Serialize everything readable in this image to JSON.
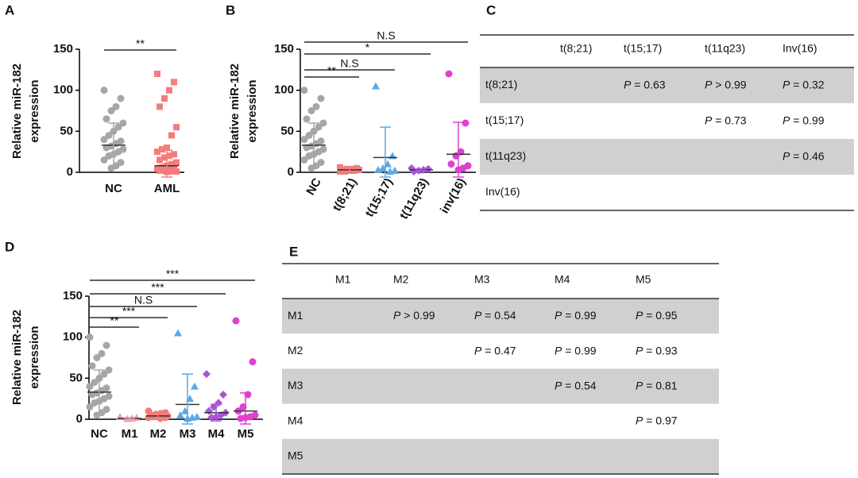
{
  "chart_data": [
    {
      "type": "strip",
      "panel": "A",
      "ylabel": [
        "Relative miR-182",
        "expression"
      ],
      "ylim": [
        0,
        150
      ],
      "yticks": [
        0,
        50,
        100,
        150
      ],
      "series": [
        {
          "name": "NC",
          "color": "#a6a6a6",
          "marker": "circle",
          "values": [
            100,
            90,
            80,
            75,
            65,
            60,
            55,
            50,
            45,
            40,
            38,
            35,
            32,
            30,
            28,
            25,
            22,
            20,
            15,
            12,
            8,
            5
          ],
          "mean": 33,
          "error": 27
        },
        {
          "name": "AML",
          "color": "#f47c7c",
          "marker": "square",
          "values": [
            120,
            110,
            100,
            90,
            80,
            55,
            45,
            30,
            28,
            25,
            22,
            20,
            18,
            15,
            12,
            10,
            8,
            6,
            5,
            4,
            3,
            2,
            2,
            1,
            1,
            0.5
          ],
          "mean": 8,
          "error": 19
        }
      ],
      "comparisons": [
        {
          "label": "**",
          "groups": [
            "NC",
            "AML"
          ]
        }
      ]
    },
    {
      "type": "strip",
      "panel": "B",
      "ylabel": [
        "Relative miR-182",
        "expression"
      ],
      "ylim": [
        0,
        150
      ],
      "yticks": [
        0,
        50,
        100,
        150
      ],
      "series": [
        {
          "name": "NC",
          "color": "#a6a6a6",
          "marker": "circle",
          "values": [
            100,
            90,
            80,
            75,
            65,
            60,
            55,
            50,
            45,
            40,
            38,
            35,
            32,
            30,
            28,
            25,
            22,
            20,
            15,
            12,
            8,
            5
          ],
          "mean": 33,
          "error": 27
        },
        {
          "name": "t(8;21)",
          "color": "#f47c7c",
          "marker": "square",
          "values": [
            6,
            5,
            4,
            4,
            3,
            3,
            2,
            2,
            1,
            1
          ],
          "mean": 3,
          "error": 2
        },
        {
          "name": "t(15;17)",
          "color": "#5aa9e6",
          "marker": "triangle",
          "values": [
            105,
            20,
            10,
            5,
            3,
            2,
            1
          ],
          "mean": 18,
          "error": 37
        },
        {
          "name": "t(11q23)",
          "color": "#a855d6",
          "marker": "diamond",
          "values": [
            5,
            4,
            3,
            2,
            1
          ],
          "mean": 3,
          "error": 1
        },
        {
          "name": "inv(16)",
          "color": "#e040d0",
          "marker": "circle",
          "values": [
            120,
            60,
            25,
            20,
            10,
            8,
            5,
            3
          ],
          "mean": 22,
          "error": 39
        }
      ],
      "comparisons": [
        {
          "label": "**",
          "groups": [
            "NC",
            "t(8;21)"
          ]
        },
        {
          "label": "N.S",
          "groups": [
            "NC",
            "t(15;17)"
          ]
        },
        {
          "label": "*",
          "groups": [
            "NC",
            "t(11q23)"
          ]
        },
        {
          "label": "N.S",
          "groups": [
            "NC",
            "inv(16)"
          ]
        }
      ]
    },
    {
      "type": "strip",
      "panel": "D",
      "ylabel": [
        "Relative miR-182",
        "expression"
      ],
      "ylim": [
        0,
        150
      ],
      "yticks": [
        0,
        50,
        100,
        150
      ],
      "series": [
        {
          "name": "NC",
          "color": "#a6a6a6",
          "marker": "circle",
          "values": [
            100,
            90,
            80,
            75,
            65,
            60,
            55,
            50,
            45,
            40,
            38,
            35,
            32,
            30,
            28,
            25,
            22,
            20,
            15,
            12,
            8,
            5
          ],
          "mean": 33,
          "error": 27
        },
        {
          "name": "M1",
          "color": "#f4a0b0",
          "marker": "triangle",
          "values": [
            3,
            2,
            1,
            0.5
          ],
          "mean": 1,
          "error": 1
        },
        {
          "name": "M2",
          "color": "#f47c7c",
          "marker": "circle",
          "values": [
            10,
            8,
            7,
            6,
            5,
            4,
            4,
            3,
            3,
            2,
            2,
            1
          ],
          "mean": 4,
          "error": 3
        },
        {
          "name": "M3",
          "color": "#5aa9e6",
          "marker": "triangle",
          "values": [
            105,
            40,
            25,
            10,
            5,
            3,
            2,
            1
          ],
          "mean": 18,
          "error": 37
        },
        {
          "name": "M4",
          "color": "#a855d6",
          "marker": "diamond",
          "values": [
            55,
            30,
            20,
            15,
            10,
            8,
            5,
            3,
            2
          ],
          "mean": 8,
          "error": 10
        },
        {
          "name": "M5",
          "color": "#e040d0",
          "marker": "circle",
          "values": [
            120,
            70,
            30,
            15,
            10,
            5,
            3,
            2,
            1
          ],
          "mean": 10,
          "error": 22
        }
      ],
      "comparisons": [
        {
          "label": "**",
          "groups": [
            "NC",
            "M1"
          ]
        },
        {
          "label": "***",
          "groups": [
            "NC",
            "M2"
          ]
        },
        {
          "label": "N.S",
          "groups": [
            "NC",
            "M3"
          ]
        },
        {
          "label": "***",
          "groups": [
            "NC",
            "M4"
          ]
        },
        {
          "label": "***",
          "groups": [
            "NC",
            "M5"
          ]
        }
      ]
    }
  ],
  "table_c": {
    "panel": "C",
    "columns": [
      "t(8;21)",
      "t(15;17)",
      "t(11q23)",
      "Inv(16)"
    ],
    "rows": [
      {
        "label": "t(8;21)",
        "cells": [
          null,
          {
            "symbol": "P",
            "text": "= 0.63"
          },
          {
            "symbol": "P",
            "text": "> 0.99"
          },
          {
            "symbol": "P",
            "text": "= 0.32"
          }
        ]
      },
      {
        "label": "t(15;17)",
        "cells": [
          null,
          null,
          {
            "symbol": "P",
            "text": "= 0.73"
          },
          {
            "symbol": "P",
            "text": "= 0.99"
          }
        ]
      },
      {
        "label": "t(11q23)",
        "cells": [
          null,
          null,
          null,
          {
            "symbol": "P",
            "text": "= 0.46"
          }
        ]
      },
      {
        "label": "Inv(16)",
        "cells": [
          null,
          null,
          null,
          null
        ]
      }
    ]
  },
  "table_e": {
    "panel": "E",
    "columns": [
      "M1",
      "M2",
      "M3",
      "M4",
      "M5"
    ],
    "rows": [
      {
        "label": "M1",
        "cells": [
          null,
          {
            "symbol": "P",
            "text": "> 0.99"
          },
          {
            "symbol": "P",
            "text": "= 0.54"
          },
          {
            "symbol": "P",
            "text": "= 0.99"
          },
          {
            "symbol": "P",
            "text": "= 0.95"
          }
        ]
      },
      {
        "label": "M2",
        "cells": [
          null,
          null,
          {
            "symbol": "P",
            "text": "= 0.47"
          },
          {
            "symbol": "P",
            "text": "= 0.99"
          },
          {
            "symbol": "P",
            "text": "= 0.93"
          }
        ]
      },
      {
        "label": "M3",
        "cells": [
          null,
          null,
          null,
          {
            "symbol": "P",
            "text": "= 0.54"
          },
          {
            "symbol": "P",
            "text": "= 0.81"
          }
        ]
      },
      {
        "label": "M4",
        "cells": [
          null,
          null,
          null,
          null,
          {
            "symbol": "P",
            "text": "= 0.97"
          }
        ]
      },
      {
        "label": "M5",
        "cells": [
          null,
          null,
          null,
          null,
          null
        ]
      }
    ]
  }
}
